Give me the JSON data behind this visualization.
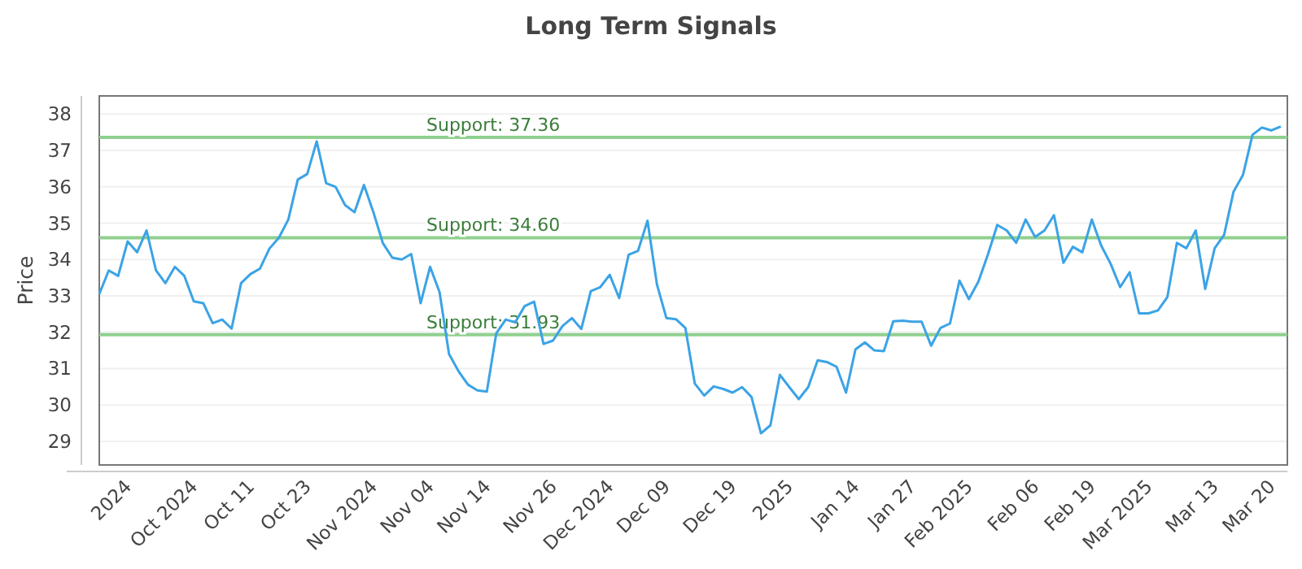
{
  "chart_data": {
    "type": "line",
    "title": "Long Term Signals",
    "ylabel": "Price",
    "categories": [
      null,
      null,
      null,
      "2024",
      null,
      null,
      null,
      null,
      null,
      null,
      "Oct 2024",
      null,
      null,
      null,
      null,
      null,
      "Oct 11",
      null,
      null,
      null,
      null,
      null,
      "Oct 23",
      null,
      null,
      null,
      null,
      null,
      null,
      "Nov 2024",
      null,
      null,
      null,
      null,
      null,
      "Nov 04",
      null,
      null,
      null,
      null,
      null,
      "Nov 14",
      null,
      null,
      null,
      null,
      null,
      null,
      "Nov 26",
      null,
      null,
      null,
      null,
      null,
      "Dec 2024",
      null,
      null,
      null,
      null,
      null,
      "Dec 09",
      null,
      null,
      null,
      null,
      null,
      null,
      "Dec 19",
      null,
      null,
      null,
      null,
      null,
      "2025",
      null,
      null,
      null,
      null,
      null,
      null,
      "Jan 14",
      null,
      null,
      null,
      null,
      null,
      "Jan 27",
      null,
      null,
      null,
      null,
      null,
      "Feb 2025",
      null,
      null,
      null,
      null,
      null,
      null,
      "Feb 06",
      null,
      null,
      null,
      null,
      null,
      "Feb 19",
      null,
      null,
      null,
      null,
      null,
      "Mar 2025",
      null,
      null,
      null,
      null,
      null,
      null,
      "Mar 13",
      null,
      null,
      null,
      null,
      null,
      "Mar 20",
      null
    ],
    "series": [
      {
        "color": "#3ba3e6",
        "values": [
          33.05,
          33.7,
          33.55,
          34.5,
          34.2,
          34.8,
          33.7,
          33.35,
          33.8,
          33.55,
          32.85,
          32.8,
          32.25,
          32.35,
          32.1,
          33.35,
          33.6,
          33.75,
          34.3,
          34.6,
          35.1,
          36.2,
          36.35,
          37.25,
          36.1,
          36.0,
          35.5,
          35.3,
          36.05,
          35.3,
          34.45,
          34.05,
          34.0,
          34.15,
          32.8,
          33.8,
          33.1,
          31.4,
          30.93,
          30.56,
          30.4,
          30.37,
          31.97,
          32.35,
          32.27,
          32.72,
          32.84,
          31.68,
          31.77,
          32.17,
          32.39,
          32.09,
          33.13,
          33.24,
          33.58,
          32.94,
          34.13,
          34.24,
          35.07,
          33.31,
          32.39,
          32.36,
          32.12,
          30.59,
          30.26,
          30.51,
          30.44,
          30.34,
          30.49,
          30.22,
          29.22,
          29.44,
          30.83,
          30.49,
          30.16,
          30.49,
          31.23,
          31.18,
          31.05,
          30.34,
          31.53,
          31.72,
          31.5,
          31.48,
          32.3,
          32.32,
          32.29,
          32.29,
          31.63,
          32.12,
          32.24,
          33.42,
          32.91,
          33.39,
          34.13,
          34.95,
          34.8,
          34.46,
          35.1,
          34.62,
          34.8,
          35.22,
          33.91,
          34.35,
          34.2,
          35.1,
          34.38,
          33.88,
          33.24,
          33.65,
          32.52,
          32.52,
          32.6,
          32.97,
          34.46,
          34.31,
          34.8,
          33.19,
          34.31,
          34.68,
          35.87,
          36.33,
          37.43,
          37.63,
          37.55,
          37.66
        ]
      }
    ],
    "ylim": [
      28.35,
      38.5
    ],
    "yticks": [
      29,
      30,
      31,
      32,
      33,
      34,
      35,
      36,
      37,
      38
    ],
    "grid": "y",
    "marker": "none",
    "line_style": "solid",
    "ref_lines": [
      {
        "axis": "y",
        "value": 37.36,
        "label": "Support: 37.36",
        "color": "#8fd08f"
      },
      {
        "axis": "y",
        "value": 34.6,
        "label": "Support: 34.60",
        "color": "#8fd08f"
      },
      {
        "axis": "y",
        "value": 31.93,
        "label": "Support: 31.93",
        "color": "#8fd08f"
      }
    ]
  }
}
